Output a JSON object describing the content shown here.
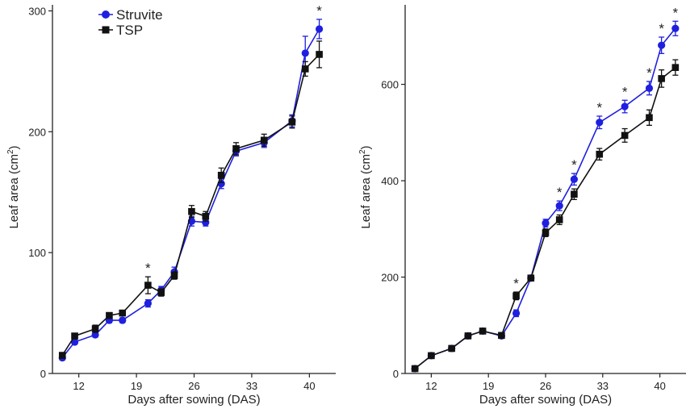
{
  "chart_data": [
    {
      "type": "line",
      "xlabel": "Days after sowing (DAS)",
      "ylabel": "Leaf area (cm",
      "ylabel_sup": "2",
      "ylabel_close": ")",
      "xlim": [
        8.8,
        43.2
      ],
      "ylim": [
        0,
        305
      ],
      "x_ticks": [
        12,
        19,
        26,
        33,
        40
      ],
      "x_tick_labels": [
        "12",
        "19",
        "26",
        "33",
        "40"
      ],
      "y_ticks": [
        0,
        100,
        200,
        300
      ],
      "y_tick_labels": [
        "0",
        "100",
        "200",
        "300"
      ],
      "grid": false,
      "legend": {
        "position": "top-left",
        "entries": [
          "Struvite",
          "TSP"
        ]
      },
      "series": [
        {
          "name": "Struvite",
          "color": "#1f1fe0",
          "marker": "circle",
          "x": [
            10,
            11.5,
            14,
            15.7,
            17.3,
            20.4,
            22,
            23.6,
            25.7,
            27.4,
            29.3,
            31.1,
            34.5,
            37.9,
            39.5,
            41.2
          ],
          "values": [
            13,
            26,
            32,
            44,
            44,
            58,
            69,
            84,
            126,
            125,
            157,
            184,
            191,
            209,
            265,
            285
          ],
          "errors": [
            2,
            2,
            2,
            2,
            2,
            3,
            3,
            4,
            4,
            3,
            4,
            4,
            4,
            5,
            14,
            8
          ]
        },
        {
          "name": "TSP",
          "color": "#111111",
          "marker": "square",
          "x": [
            10,
            11.5,
            14,
            15.7,
            17.3,
            20.4,
            22,
            23.6,
            25.7,
            27.4,
            29.3,
            31.1,
            34.5,
            37.9,
            39.5,
            41.2
          ],
          "values": [
            15,
            31,
            37,
            48,
            50,
            73,
            67,
            81,
            134,
            130,
            164,
            186,
            193,
            208,
            252,
            264
          ],
          "errors": [
            2,
            2,
            3,
            2,
            2,
            7,
            3,
            3,
            5,
            4,
            6,
            5,
            5,
            5,
            6,
            11
          ]
        }
      ],
      "significance": {
        "symbol": "*",
        "x": [
          20.4,
          41.2
        ]
      }
    },
    {
      "type": "line",
      "xlabel": "Days after sowing (DAS)",
      "ylabel": "Leaf area (cm",
      "ylabel_sup": "2",
      "ylabel_close": ")",
      "xlim": [
        8.8,
        43.2
      ],
      "ylim": [
        0,
        765
      ],
      "x_ticks": [
        12,
        19,
        26,
        33,
        40
      ],
      "x_tick_labels": [
        "12",
        "19",
        "26",
        "33",
        "40"
      ],
      "y_ticks": [
        0,
        200,
        400,
        600
      ],
      "y_tick_labels": [
        "0",
        "200",
        "400",
        "600"
      ],
      "grid": false,
      "series": [
        {
          "name": "Struvite",
          "color": "#1f1fe0",
          "marker": "circle",
          "x": [
            10,
            12,
            14.5,
            16.5,
            18.3,
            20.6,
            22.4,
            24.2,
            26,
            27.7,
            29.5,
            32.6,
            35.7,
            38.7,
            40.2,
            41.9
          ],
          "values": [
            10,
            37,
            52,
            78,
            88,
            78,
            125,
            198,
            312,
            348,
            403,
            521,
            554,
            592,
            681,
            716
          ],
          "errors": [
            2,
            3,
            3,
            3,
            4,
            5,
            7,
            6,
            8,
            10,
            12,
            13,
            13,
            14,
            17,
            15
          ]
        },
        {
          "name": "TSP",
          "color": "#111111",
          "marker": "square",
          "x": [
            10,
            12,
            14.5,
            16.5,
            18.3,
            20.6,
            22.4,
            24.2,
            26,
            27.7,
            29.5,
            32.6,
            35.7,
            38.7,
            40.2,
            41.9
          ],
          "values": [
            10,
            37,
            52,
            78,
            88,
            79,
            161,
            198,
            292,
            319,
            372,
            455,
            494,
            531,
            612,
            635
          ],
          "errors": [
            2,
            3,
            3,
            3,
            4,
            5,
            8,
            6,
            8,
            10,
            11,
            12,
            14,
            16,
            18,
            16
          ]
        }
      ],
      "significance": {
        "symbol": "*",
        "x": [
          22.4,
          27.7,
          29.5,
          32.6,
          35.7,
          38.7,
          40.2,
          41.9
        ]
      }
    }
  ]
}
